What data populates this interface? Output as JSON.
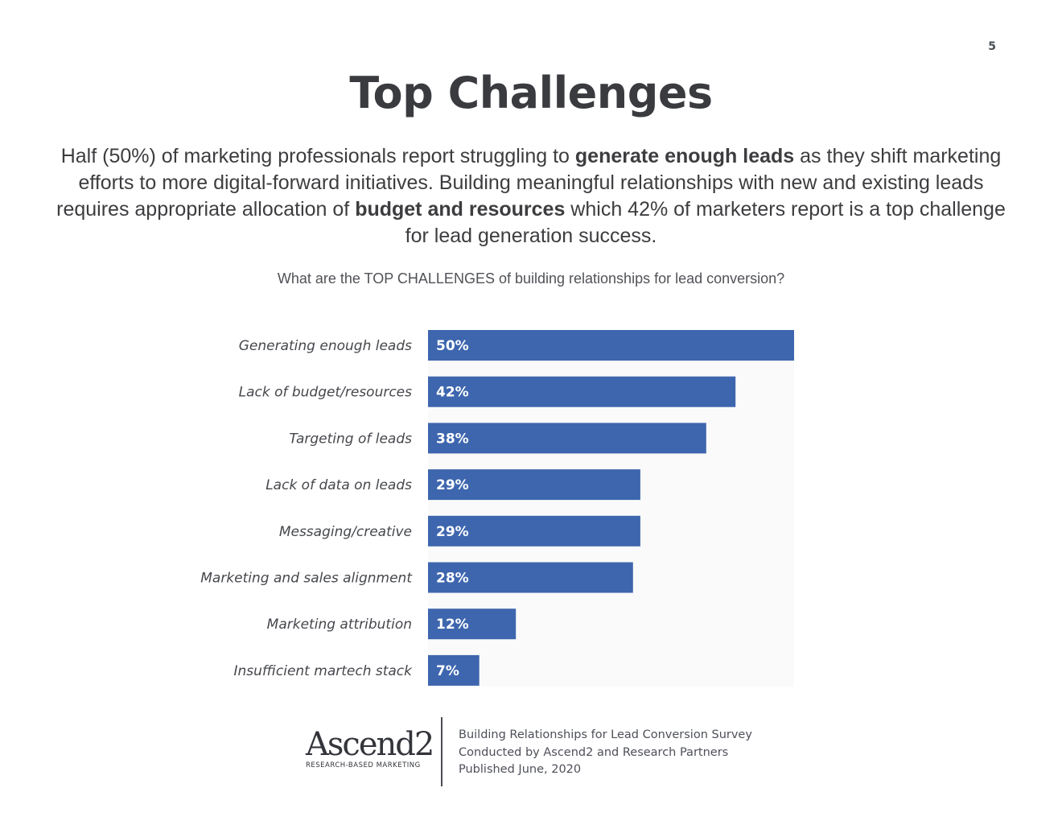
{
  "page_number": "5",
  "title": "Top Challenges",
  "intro": {
    "part1": "Half (50%) of marketing professionals report struggling to ",
    "bold1": "generate enough leads",
    "part2": " as they shift marketing efforts to more digital-forward initiatives. Building meaningful relationships with new and existing leads requires appropriate allocation of ",
    "bold2": "budget and resources",
    "part3": " which 42% of marketers report is a top challenge for lead generation success."
  },
  "question": "What are the TOP CHALLENGES of building relationships for lead conversion?",
  "colors": {
    "bar": "#3e66ae",
    "plot_background": "#fafafa"
  },
  "chart_data": {
    "type": "bar",
    "orientation": "horizontal",
    "title": "What are the TOP CHALLENGES of building relationships for lead conversion?",
    "categories": [
      "Generating enough leads",
      "Lack of budget/resources",
      "Targeting of leads",
      "Lack of data on leads",
      "Messaging/creative",
      "Marketing and sales alignment",
      "Marketing attribution",
      "Insufficient martech stack"
    ],
    "values": [
      50,
      42,
      38,
      29,
      29,
      28,
      12,
      7
    ],
    "value_labels": [
      "50%",
      "42%",
      "38%",
      "29%",
      "29%",
      "28%",
      "12%",
      "7%"
    ],
    "xlim": [
      0,
      50
    ],
    "grid": false,
    "legend": "none"
  },
  "footer": {
    "logo_text": "Ascend2",
    "logo_tagline": "RESEARCH-BASED MARKETING",
    "lines": [
      "Building Relationships for Lead Conversion Survey",
      "Conducted by Ascend2 and Research Partners",
      "Published June, 2020"
    ]
  }
}
